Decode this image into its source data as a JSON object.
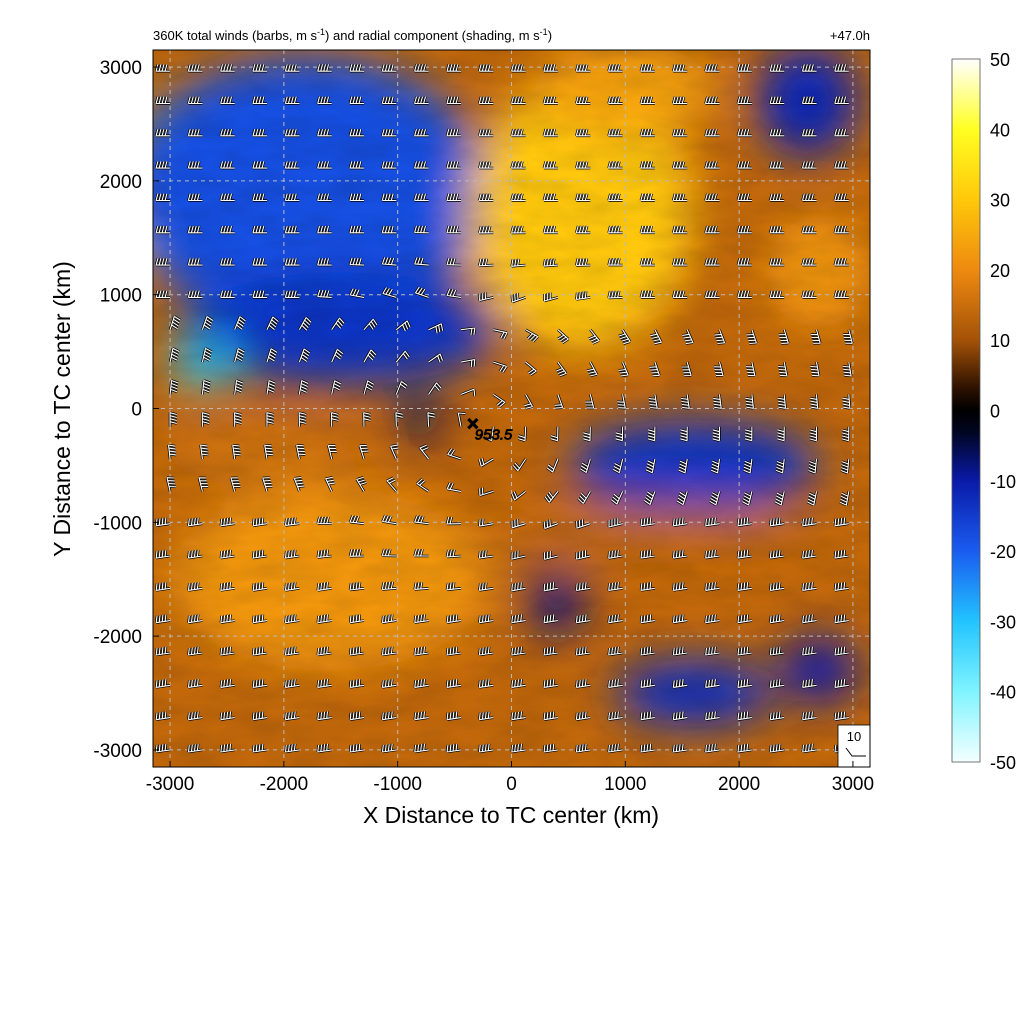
{
  "chart_data": {
    "type": "heatmap",
    "title_left": "360K total winds (barbs, m s",
    "title_left_unit_exp": "-1",
    "title_mid": ") and radial component (shading, m s",
    "title_mid_unit_exp": "-1",
    "title_end": ")",
    "title_right": "+47.0h",
    "xlabel": "X Distance to TC center (km)",
    "ylabel": "Y Distance to TC center (km)",
    "xlim": [
      -3150,
      3150
    ],
    "ylim": [
      -3150,
      3150
    ],
    "x_ticks": [
      -3000,
      -2000,
      -1000,
      0,
      1000,
      2000,
      3000
    ],
    "x_tick_labels": [
      "-3000",
      "-2000",
      "-1000",
      "0",
      "1000",
      "2000",
      "3000"
    ],
    "y_ticks": [
      -3000,
      -2000,
      -1000,
      0,
      1000,
      2000,
      3000
    ],
    "y_tick_labels": [
      "-3000",
      "-2000",
      "-1000",
      "0",
      "1000",
      "2000",
      "3000"
    ],
    "grid": true,
    "colorbar": {
      "min": -50,
      "max": 50,
      "ticks": [
        50,
        40,
        30,
        20,
        10,
        0,
        -10,
        -20,
        -30,
        -40,
        -50
      ],
      "tick_labels": [
        "50",
        "40",
        "30",
        "20",
        "10",
        "0",
        "-10",
        "-20",
        "-30",
        "-40",
        "-50"
      ],
      "stops": [
        {
          "v": -50,
          "c": "#f4ffff"
        },
        {
          "v": -40,
          "c": "#80f4ff"
        },
        {
          "v": -30,
          "c": "#22c4ff"
        },
        {
          "v": -20,
          "c": "#1a5cf0"
        },
        {
          "v": -10,
          "c": "#0a1aa8"
        },
        {
          "v": -3,
          "c": "#000520"
        },
        {
          "v": 0,
          "c": "#000000"
        },
        {
          "v": 3,
          "c": "#2a1000"
        },
        {
          "v": 10,
          "c": "#a45208"
        },
        {
          "v": 20,
          "c": "#ee8a10"
        },
        {
          "v": 30,
          "c": "#ffc80a"
        },
        {
          "v": 40,
          "c": "#ffff22"
        },
        {
          "v": 50,
          "c": "#ffffff"
        }
      ]
    },
    "shading_regions": [
      {
        "x": -2300,
        "y": 1500,
        "rx": 1100,
        "ry": 350,
        "value": -48
      },
      {
        "x": -2200,
        "y": 2300,
        "rx": 1100,
        "ry": 600,
        "value": -30
      },
      {
        "x": -1800,
        "y": 1900,
        "rx": 1600,
        "ry": 1200,
        "value": -18
      },
      {
        "x": -1500,
        "y": 700,
        "rx": 1400,
        "ry": 500,
        "value": -14
      },
      {
        "x": -2700,
        "y": 400,
        "rx": 300,
        "ry": 200,
        "value": -30
      },
      {
        "x": 600,
        "y": 1700,
        "rx": 1000,
        "ry": 1200,
        "value": 30
      },
      {
        "x": 1000,
        "y": 2800,
        "rx": 800,
        "ry": 400,
        "value": 24
      },
      {
        "x": 2600,
        "y": 2700,
        "rx": 450,
        "ry": 500,
        "value": -12
      },
      {
        "x": 2700,
        "y": 1200,
        "rx": 450,
        "ry": 500,
        "value": 22
      },
      {
        "x": -1600,
        "y": -1500,
        "rx": 1400,
        "ry": 800,
        "value": 22
      },
      {
        "x": -2200,
        "y": -400,
        "rx": 900,
        "ry": 250,
        "value": 16
      },
      {
        "x": 1600,
        "y": -500,
        "rx": 1100,
        "ry": 400,
        "value": -14
      },
      {
        "x": 1600,
        "y": -2500,
        "rx": 700,
        "ry": 300,
        "value": -13
      },
      {
        "x": 2700,
        "y": -2300,
        "rx": 350,
        "ry": 300,
        "value": -10
      },
      {
        "x": 400,
        "y": -1700,
        "rx": 250,
        "ry": 300,
        "value": -8
      },
      {
        "x": -800,
        "y": -100,
        "rx": 200,
        "ry": 200,
        "value": -6
      },
      {
        "x": 1200,
        "y": -1100,
        "rx": 1500,
        "ry": 250,
        "value": 14
      }
    ],
    "shading_background_value": 14,
    "barb_grid_spacing_km": 284,
    "reference_barb": {
      "label": "10"
    },
    "center_marker": {
      "symbol": "×",
      "x": -340,
      "y": -140,
      "label": "953.5"
    }
  }
}
